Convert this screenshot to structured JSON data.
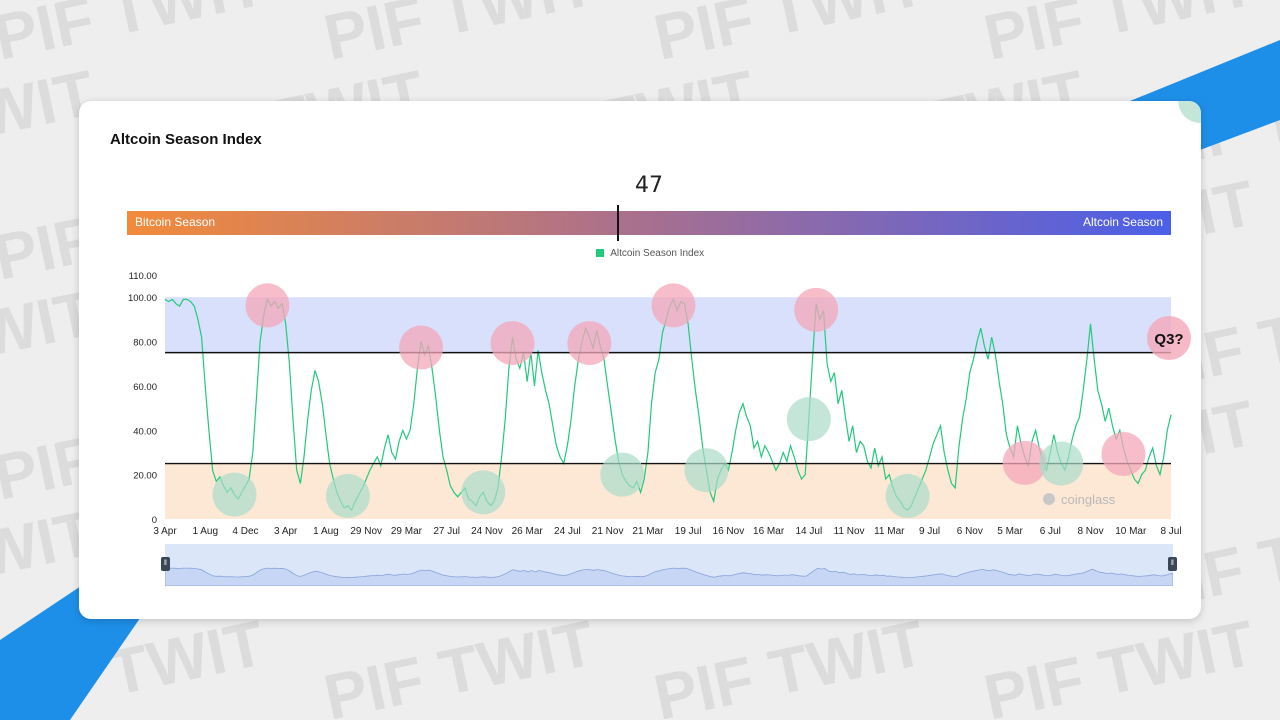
{
  "watermark": {
    "text": "PIF TWIT"
  },
  "card": {
    "title": "Altcoin Season Index"
  },
  "gauge": {
    "value": "47",
    "value_num": 47,
    "left_label": "Bitcoin Season",
    "right_label": "Altcoin Season",
    "colors": [
      "#f28b3b",
      "#a76f90",
      "#4b5fe8"
    ]
  },
  "legend": {
    "label": "Altcoin Season Index",
    "color": "#22c97e"
  },
  "branding": {
    "text": "coinglass"
  },
  "annotation": {
    "text": "Q3?"
  },
  "chart_data": {
    "type": "line",
    "ylim": [
      0,
      110
    ],
    "y_ticks": [
      "110.00",
      "100.00",
      "80.00",
      "60.00",
      "40.00",
      "20.00",
      "0"
    ],
    "y_tick_values": [
      110,
      100,
      80,
      60,
      40,
      20,
      0
    ],
    "x_tick_labels": [
      "3 Apr",
      "1 Aug",
      "4 Dec",
      "3 Apr",
      "1 Aug",
      "29 Nov",
      "29 Mar",
      "27 Jul",
      "24 Nov",
      "26 Mar",
      "24 Jul",
      "21 Nov",
      "21 Mar",
      "19 Jul",
      "16 Nov",
      "16 Mar",
      "14 Jul",
      "11 Nov",
      "11 Mar",
      "9 Jul",
      "6 Nov",
      "5 Mar",
      "6 Jul",
      "8 Nov",
      "10 Mar",
      "8 Jul"
    ],
    "thresholds": [
      75,
      25
    ],
    "bands": [
      {
        "from": 75,
        "to": 100,
        "color": "#d8e0fb"
      },
      {
        "from": 0,
        "to": 25,
        "color": "#fde8d6"
      }
    ],
    "series": [
      {
        "name": "Altcoin Season Index",
        "color": "#22c97e",
        "values": [
          99,
          98,
          99,
          97,
          96,
          99,
          99,
          98,
          96,
          90,
          82,
          60,
          40,
          22,
          17,
          19,
          15,
          12,
          14,
          11,
          9,
          12,
          15,
          18,
          30,
          55,
          80,
          92,
          99,
          96,
          98,
          95,
          97,
          88,
          70,
          45,
          22,
          16,
          28,
          45,
          58,
          67,
          62,
          52,
          38,
          25,
          18,
          12,
          8,
          5,
          6,
          4,
          8,
          11,
          14,
          18,
          22,
          25,
          28,
          24,
          32,
          38,
          30,
          27,
          35,
          40,
          36,
          40,
          52,
          68,
          80,
          74,
          78,
          68,
          55,
          40,
          28,
          22,
          15,
          12,
          10,
          12,
          14,
          9,
          8,
          6,
          10,
          12,
          8,
          6,
          8,
          14,
          28,
          45,
          68,
          82,
          72,
          68,
          75,
          62,
          75,
          60,
          76,
          66,
          58,
          52,
          42,
          33,
          28,
          25,
          33,
          45,
          60,
          72,
          80,
          86,
          82,
          77,
          85,
          78,
          72,
          60,
          48,
          36,
          26,
          20,
          17,
          15,
          14,
          17,
          12,
          18,
          30,
          52,
          66,
          72,
          84,
          90,
          96,
          99,
          94,
          98,
          97,
          88,
          72,
          58,
          46,
          32,
          22,
          12,
          8,
          18,
          22,
          25,
          22,
          30,
          40,
          48,
          52,
          46,
          42,
          32,
          35,
          28,
          33,
          30,
          26,
          22,
          25,
          30,
          26,
          33,
          28,
          22,
          18,
          20,
          45,
          72,
          97,
          90,
          94,
          70,
          62,
          66,
          52,
          58,
          46,
          35,
          42,
          30,
          35,
          33,
          26,
          23,
          32,
          24,
          28,
          18,
          20,
          14,
          10,
          8,
          5,
          4,
          6,
          10,
          14,
          18,
          22,
          28,
          34,
          38,
          42,
          30,
          22,
          16,
          14,
          32,
          45,
          54,
          66,
          72,
          80,
          86,
          78,
          72,
          82,
          74,
          62,
          52,
          38,
          32,
          28,
          42,
          34,
          28,
          24,
          35,
          40,
          32,
          26,
          22,
          30,
          38,
          30,
          25,
          22,
          28,
          36,
          42,
          46,
          58,
          72,
          88,
          72,
          58,
          52,
          44,
          50,
          42,
          36,
          40,
          32,
          26,
          22,
          18,
          16,
          20,
          22,
          28,
          32,
          24,
          20,
          28,
          40,
          47
        ]
      }
    ]
  }
}
